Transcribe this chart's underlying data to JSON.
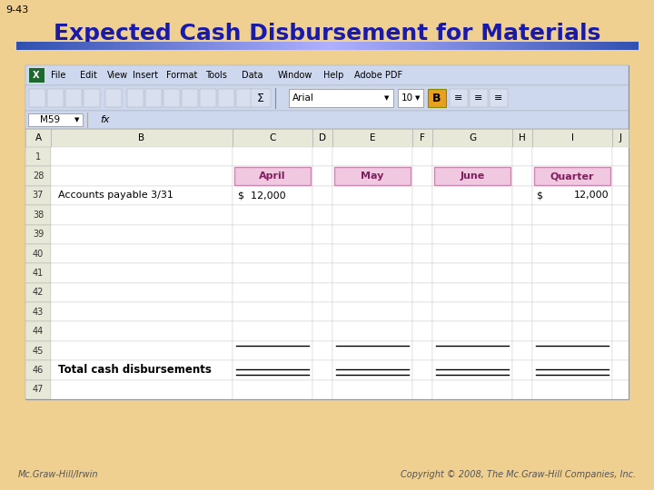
{
  "slide_number": "9-43",
  "title": "Expected Cash Disbursement for Materials",
  "background_color": "#F0D090",
  "title_color": "#1a1aaa",
  "title_fontsize": 18,
  "footer_left": "Mc.Graw-Hill/Irwin",
  "footer_right": "Copyright © 2008, The Mc.Graw-Hill Companies, Inc.",
  "menu_items": [
    "File",
    "Edit",
    "View",
    "Insert",
    "Format",
    "Tools",
    "Data",
    "Window",
    "Help",
    "Adobe PDF"
  ],
  "columns": [
    "A",
    "B",
    "C",
    "D",
    "E",
    "F",
    "G",
    "H",
    "I",
    "J"
  ],
  "row_numbers": [
    "1",
    "28",
    "37",
    "38",
    "39",
    "40",
    "41",
    "42",
    "43",
    "44",
    "45",
    "46",
    "47"
  ],
  "row37_label": "Accounts payable 3/31",
  "row46_label": "Total cash disbursements",
  "april_value": "$  12,000",
  "quarter_dollar": "$",
  "quarter_value": "12,000",
  "cell_ref": "M59",
  "font_name": "Arial",
  "font_size_cell": "10"
}
